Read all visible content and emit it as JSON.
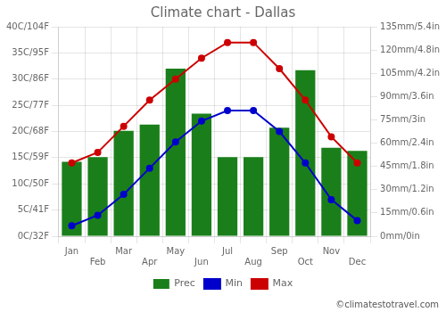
{
  "chart_data": {
    "type": "bar",
    "title": "Climate chart - Dallas",
    "categories": [
      "Jan",
      "Feb",
      "Mar",
      "Apr",
      "May",
      "Jun",
      "Jul",
      "Aug",
      "Sep",
      "Oct",
      "Nov",
      "Dec"
    ],
    "series": [
      {
        "name": "Prec",
        "type": "bar",
        "axis": "y2",
        "color": "#1a7f1a",
        "values": [
          48,
          51,
          68,
          72,
          108,
          79,
          51,
          51,
          70,
          107,
          57,
          55
        ]
      },
      {
        "name": "Min",
        "type": "line",
        "color": "#0000cc",
        "marker": "circle",
        "values": [
          2,
          4,
          8,
          13,
          18,
          22,
          24,
          24,
          20,
          14,
          7,
          3
        ]
      },
      {
        "name": "Max",
        "type": "line",
        "color": "#cc0000",
        "marker": "circle",
        "values": [
          14,
          16,
          21,
          26,
          30,
          34,
          37,
          37,
          32,
          26,
          19,
          14
        ]
      }
    ],
    "ylim": [
      0,
      40
    ],
    "yticks": [
      {
        "value": 0,
        "label": "0C/32F"
      },
      {
        "value": 5,
        "label": "5C/41F"
      },
      {
        "value": 10,
        "label": "10C/50F"
      },
      {
        "value": 15,
        "label": "15C/59F"
      },
      {
        "value": 20,
        "label": "20C/68F"
      },
      {
        "value": 25,
        "label": "25C/77F"
      },
      {
        "value": 30,
        "label": "30C/86F"
      },
      {
        "value": 35,
        "label": "35C/95F"
      },
      {
        "value": 40,
        "label": "40C/104F"
      }
    ],
    "y2lim": [
      0,
      135
    ],
    "y2ticks": [
      {
        "value": 0,
        "label": "0mm/0in"
      },
      {
        "value": 15,
        "label": "15mm/0.6in"
      },
      {
        "value": 30,
        "label": "30mm/1.2in"
      },
      {
        "value": 45,
        "label": "45mm/1.8in"
      },
      {
        "value": 60,
        "label": "60mm/2.4in"
      },
      {
        "value": 75,
        "label": "75mm/3in"
      },
      {
        "value": 90,
        "label": "90mm/3.6in"
      },
      {
        "value": 105,
        "label": "105mm/4.2in"
      },
      {
        "value": 120,
        "label": "120mm/4.8in"
      },
      {
        "value": 135,
        "label": "135mm/5.4in"
      }
    ],
    "grid": true,
    "legend": "bottom",
    "annotations": [
      "©climatestotravel.com"
    ]
  }
}
